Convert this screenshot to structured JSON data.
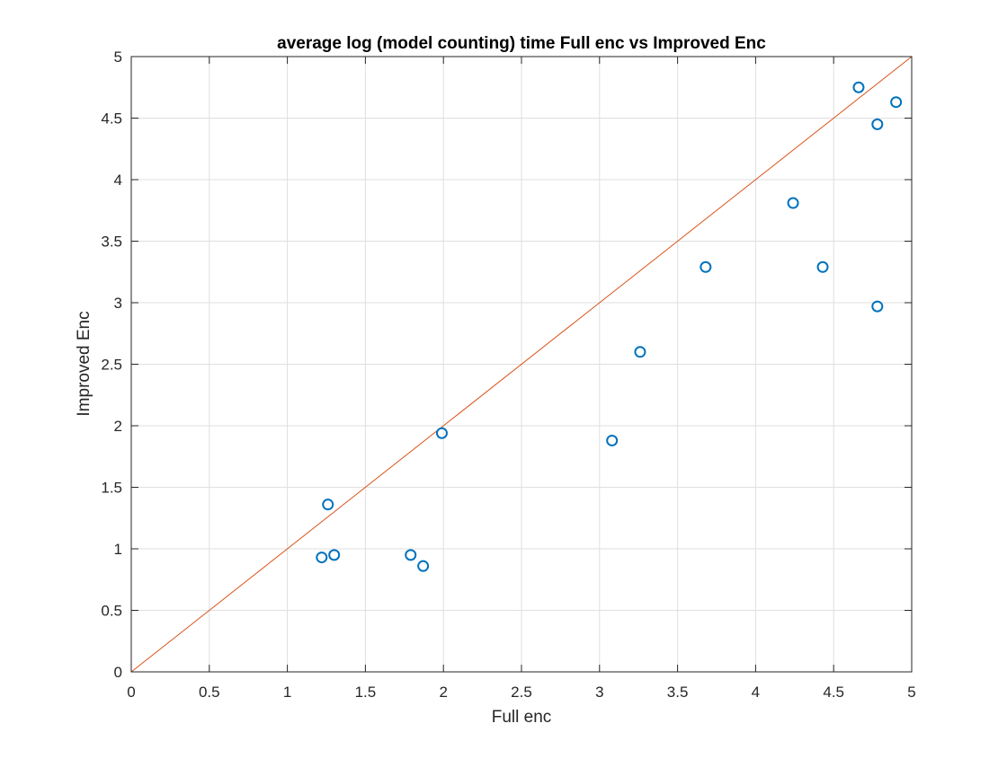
{
  "chart_data": {
    "type": "scatter",
    "title": "average log (model counting) time Full enc vs Improved Enc",
    "xlabel": "Full enc",
    "ylabel": "Improved Enc",
    "xlim": [
      0,
      5
    ],
    "ylim": [
      0,
      5
    ],
    "xticks": [
      "0",
      "0.5",
      "1",
      "1.5",
      "2",
      "2.5",
      "3",
      "3.5",
      "4",
      "4.5",
      "5"
    ],
    "yticks": [
      "0",
      "0.5",
      "1",
      "1.5",
      "2",
      "2.5",
      "3",
      "3.5",
      "4",
      "4.5",
      "5"
    ],
    "grid": true,
    "legend": "none",
    "series": [
      {
        "marker": "circle",
        "color": "#0072BD",
        "points": [
          {
            "x": 1.22,
            "y": 0.93
          },
          {
            "x": 1.26,
            "y": 1.36
          },
          {
            "x": 1.3,
            "y": 0.95
          },
          {
            "x": 1.79,
            "y": 0.95
          },
          {
            "x": 1.87,
            "y": 0.86
          },
          {
            "x": 1.99,
            "y": 1.94
          },
          {
            "x": 3.08,
            "y": 1.88
          },
          {
            "x": 3.26,
            "y": 2.6
          },
          {
            "x": 3.68,
            "y": 3.29
          },
          {
            "x": 4.24,
            "y": 3.81
          },
          {
            "x": 4.43,
            "y": 3.29
          },
          {
            "x": 4.66,
            "y": 4.75
          },
          {
            "x": 4.78,
            "y": 2.97
          },
          {
            "x": 4.78,
            "y": 4.45
          },
          {
            "x": 4.9,
            "y": 4.63
          }
        ]
      },
      {
        "type": "line",
        "color": "#D95319",
        "points": [
          {
            "x": 0,
            "y": 0
          },
          {
            "x": 5,
            "y": 5
          }
        ]
      }
    ]
  }
}
